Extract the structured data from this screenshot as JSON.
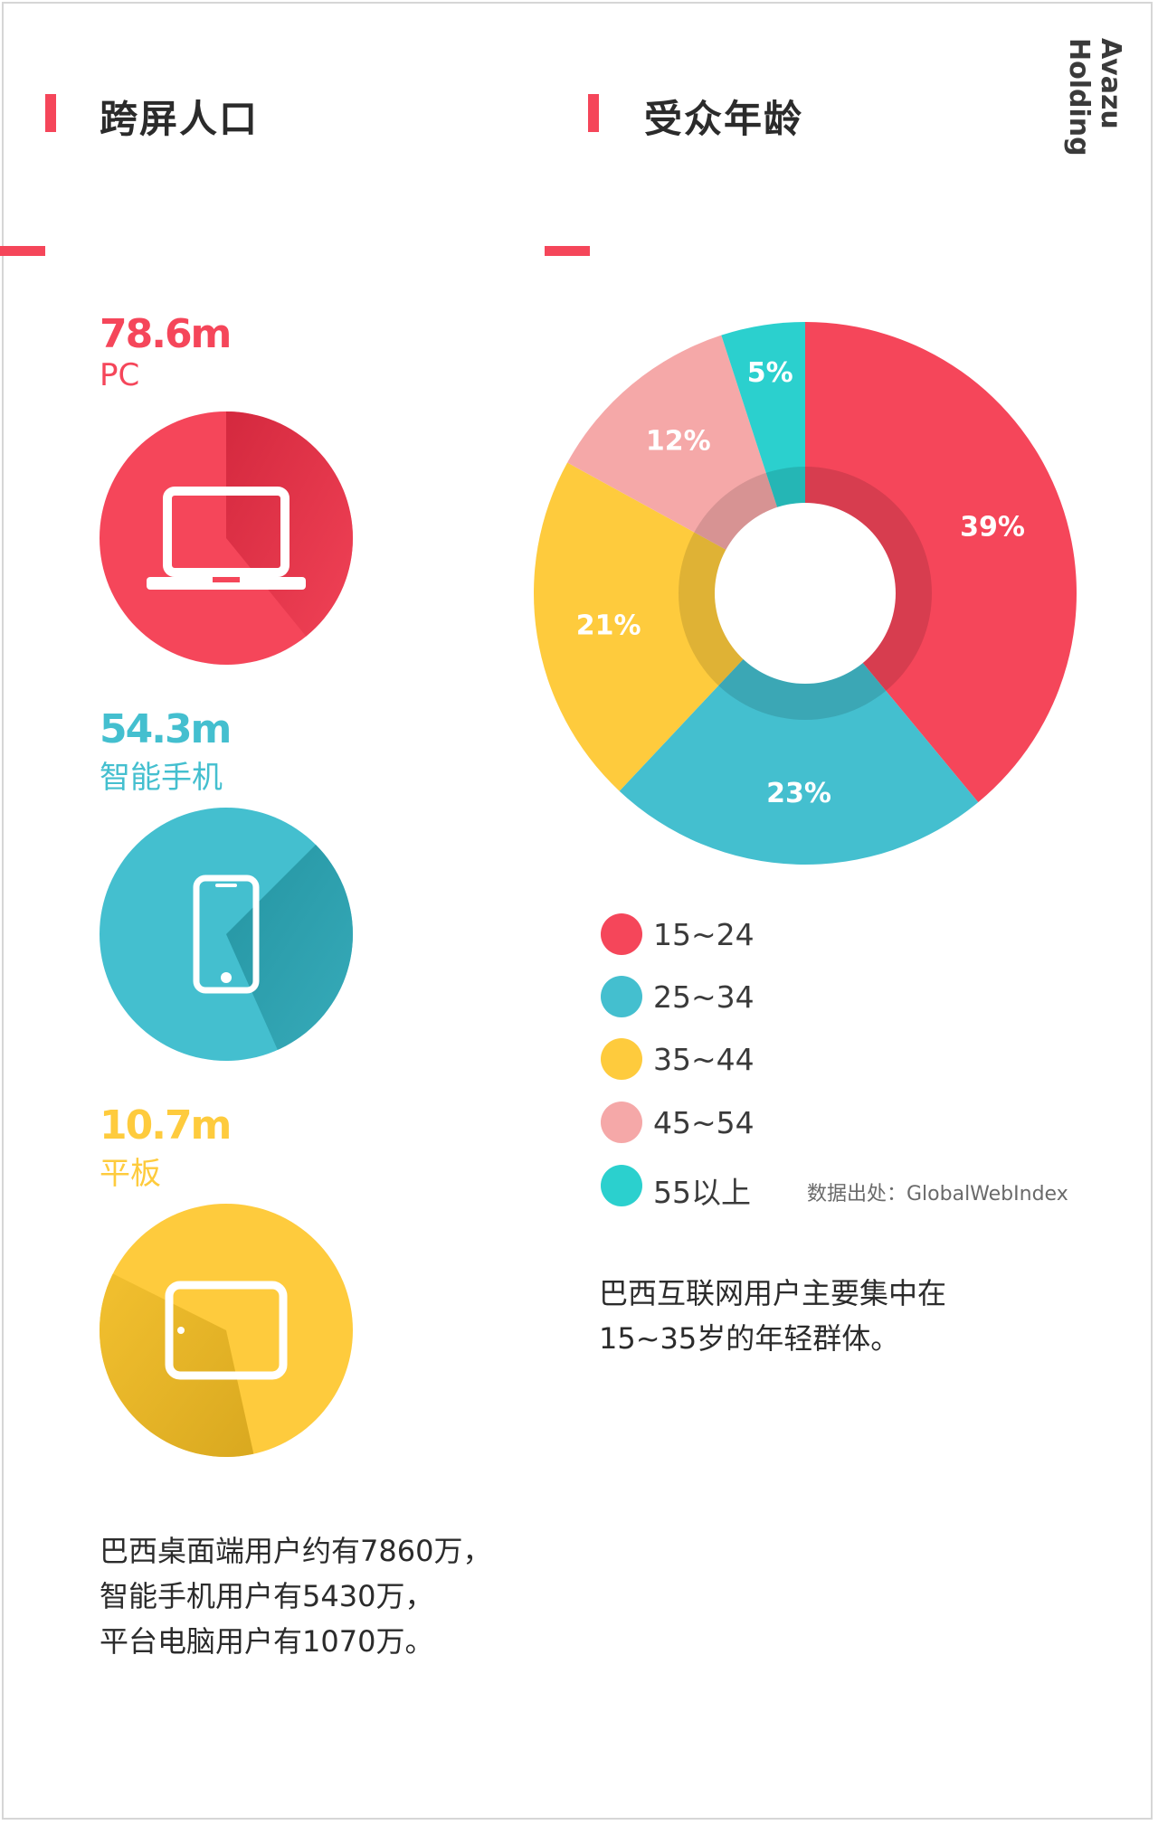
{
  "brand": "Avazu Holding",
  "colors": {
    "accent": "#f5465a",
    "pc": "#f5465a",
    "smartphone": "#44bfcf",
    "tablet": "#fecb3d",
    "age_15_24": "#f5465a",
    "age_25_34": "#44bfcf",
    "age_35_44": "#fecb3d",
    "age_45_54": "#f5a8a8",
    "age_55_plus": "#2bd0ce"
  },
  "left_section": {
    "title": "跨屏人口",
    "devices": [
      {
        "value": "78.6m",
        "label": "PC",
        "icon": "laptop-icon"
      },
      {
        "value": "54.3m",
        "label": "智能手机",
        "icon": "smartphone-icon"
      },
      {
        "value": "10.7m",
        "label": "平板",
        "icon": "tablet-icon"
      }
    ],
    "summary": [
      "巴西桌面端用户约有7860万，",
      "智能手机用户有5430万，",
      "平台电脑用户有1070万。"
    ]
  },
  "right_section": {
    "title": "受众年龄",
    "legend": [
      "15~24",
      "25~34",
      "35~44",
      "45~54",
      "55以上"
    ],
    "source": "数据出处：GlobalWebIndex",
    "summary": [
      "巴西互联网用户主要集中在",
      "15~35岁的年轻群体。"
    ]
  },
  "chart_data": [
    {
      "type": "bar",
      "title": "跨屏人口",
      "categories": [
        "PC",
        "智能手机",
        "平板"
      ],
      "values": [
        78.6,
        54.3,
        10.7
      ],
      "unit": "m"
    },
    {
      "type": "pie",
      "title": "受众年龄",
      "categories": [
        "15~24",
        "25~34",
        "35~44",
        "45~54",
        "55以上"
      ],
      "values": [
        39,
        23,
        21,
        12,
        5
      ],
      "data_labels": [
        "39%",
        "23%",
        "21%",
        "12%",
        "5%"
      ],
      "colors": [
        "#f5465a",
        "#44bfcf",
        "#fecb3d",
        "#f5a8a8",
        "#2bd0ce"
      ],
      "legend": "below"
    }
  ]
}
